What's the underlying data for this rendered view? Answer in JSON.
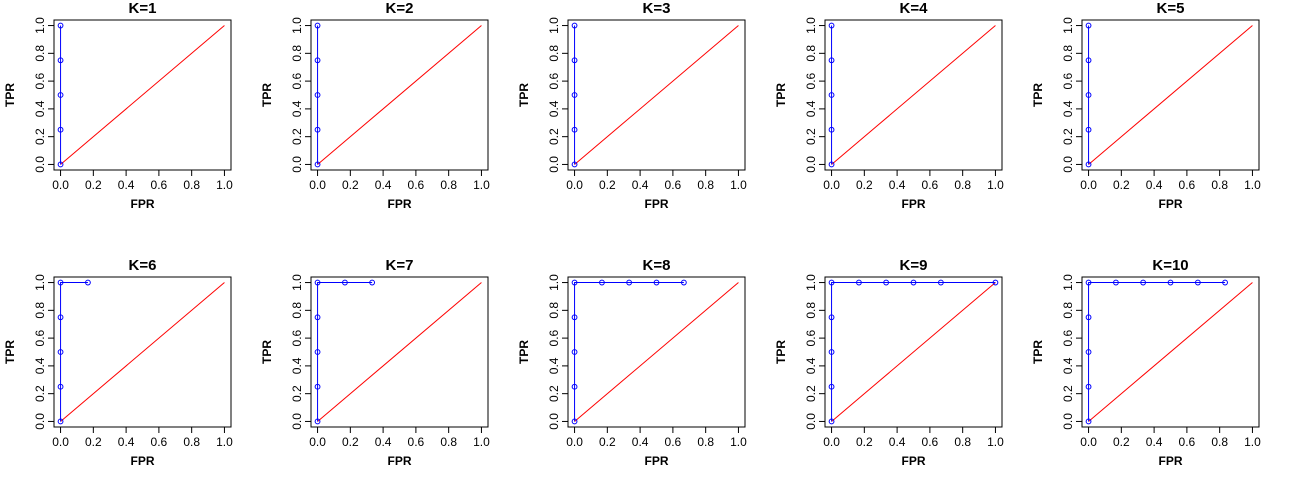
{
  "colors": {
    "roc": "#0000ff",
    "diagonal": "#ff0000",
    "axis": "#000000"
  },
  "chart_data": [
    {
      "type": "line",
      "title": "K=1",
      "xlabel": "FPR",
      "ylabel": "TPR",
      "xlim": [
        0,
        1
      ],
      "ylim": [
        0,
        1
      ],
      "xticks": [
        "0.0",
        "0.2",
        "0.4",
        "0.6",
        "0.8",
        "1.0"
      ],
      "yticks": [
        "0.0",
        "0.2",
        "0.4",
        "0.6",
        "0.8",
        "1.0"
      ],
      "reference_line": [
        [
          0,
          0
        ],
        [
          1,
          1
        ]
      ],
      "x": [
        0,
        0,
        0,
        0,
        0
      ],
      "y": [
        0,
        0.25,
        0.5,
        0.75,
        1.0
      ]
    },
    {
      "type": "line",
      "title": "K=2",
      "xlabel": "FPR",
      "ylabel": "TPR",
      "xlim": [
        0,
        1
      ],
      "ylim": [
        0,
        1
      ],
      "xticks": [
        "0.0",
        "0.2",
        "0.4",
        "0.6",
        "0.8",
        "1.0"
      ],
      "yticks": [
        "0.0",
        "0.2",
        "0.4",
        "0.6",
        "0.8",
        "1.0"
      ],
      "reference_line": [
        [
          0,
          0
        ],
        [
          1,
          1
        ]
      ],
      "x": [
        0,
        0,
        0,
        0,
        0
      ],
      "y": [
        0,
        0.25,
        0.5,
        0.75,
        1.0
      ]
    },
    {
      "type": "line",
      "title": "K=3",
      "xlabel": "FPR",
      "ylabel": "TPR",
      "xlim": [
        0,
        1
      ],
      "ylim": [
        0,
        1
      ],
      "xticks": [
        "0.0",
        "0.2",
        "0.4",
        "0.6",
        "0.8",
        "1.0"
      ],
      "yticks": [
        "0.0",
        "0.2",
        "0.4",
        "0.6",
        "0.8",
        "1.0"
      ],
      "reference_line": [
        [
          0,
          0
        ],
        [
          1,
          1
        ]
      ],
      "x": [
        0,
        0,
        0,
        0,
        0
      ],
      "y": [
        0,
        0.25,
        0.5,
        0.75,
        1.0
      ]
    },
    {
      "type": "line",
      "title": "K=4",
      "xlabel": "FPR",
      "ylabel": "TPR",
      "xlim": [
        0,
        1
      ],
      "ylim": [
        0,
        1
      ],
      "xticks": [
        "0.0",
        "0.2",
        "0.4",
        "0.6",
        "0.8",
        "1.0"
      ],
      "yticks": [
        "0.0",
        "0.2",
        "0.4",
        "0.6",
        "0.8",
        "1.0"
      ],
      "reference_line": [
        [
          0,
          0
        ],
        [
          1,
          1
        ]
      ],
      "x": [
        0,
        0,
        0,
        0,
        0
      ],
      "y": [
        0,
        0.25,
        0.5,
        0.75,
        1.0
      ]
    },
    {
      "type": "line",
      "title": "K=5",
      "xlabel": "FPR",
      "ylabel": "TPR",
      "xlim": [
        0,
        1
      ],
      "ylim": [
        0,
        1
      ],
      "xticks": [
        "0.0",
        "0.2",
        "0.4",
        "0.6",
        "0.8",
        "1.0"
      ],
      "yticks": [
        "0.0",
        "0.2",
        "0.4",
        "0.6",
        "0.8",
        "1.0"
      ],
      "reference_line": [
        [
          0,
          0
        ],
        [
          1,
          1
        ]
      ],
      "x": [
        0,
        0,
        0,
        0,
        0
      ],
      "y": [
        0,
        0.25,
        0.5,
        0.75,
        1.0
      ]
    },
    {
      "type": "line",
      "title": "K=6",
      "xlabel": "FPR",
      "ylabel": "TPR",
      "xlim": [
        0,
        1
      ],
      "ylim": [
        0,
        1
      ],
      "xticks": [
        "0.0",
        "0.2",
        "0.4",
        "0.6",
        "0.8",
        "1.0"
      ],
      "yticks": [
        "0.0",
        "0.2",
        "0.4",
        "0.6",
        "0.8",
        "1.0"
      ],
      "reference_line": [
        [
          0,
          0
        ],
        [
          1,
          1
        ]
      ],
      "x": [
        0,
        0,
        0,
        0,
        0,
        0.167
      ],
      "y": [
        0,
        0.25,
        0.5,
        0.75,
        1.0,
        1.0
      ]
    },
    {
      "type": "line",
      "title": "K=7",
      "xlabel": "FPR",
      "ylabel": "TPR",
      "xlim": [
        0,
        1
      ],
      "ylim": [
        0,
        1
      ],
      "xticks": [
        "0.0",
        "0.2",
        "0.4",
        "0.6",
        "0.8",
        "1.0"
      ],
      "yticks": [
        "0.0",
        "0.2",
        "0.4",
        "0.6",
        "0.8",
        "1.0"
      ],
      "reference_line": [
        [
          0,
          0
        ],
        [
          1,
          1
        ]
      ],
      "x": [
        0,
        0,
        0,
        0,
        0,
        0.167,
        0.333
      ],
      "y": [
        0,
        0.25,
        0.5,
        0.75,
        1.0,
        1.0,
        1.0
      ]
    },
    {
      "type": "line",
      "title": "K=8",
      "xlabel": "FPR",
      "ylabel": "TPR",
      "xlim": [
        0,
        1
      ],
      "ylim": [
        0,
        1
      ],
      "xticks": [
        "0.0",
        "0.2",
        "0.4",
        "0.6",
        "0.8",
        "1.0"
      ],
      "yticks": [
        "0.0",
        "0.2",
        "0.4",
        "0.6",
        "0.8",
        "1.0"
      ],
      "reference_line": [
        [
          0,
          0
        ],
        [
          1,
          1
        ]
      ],
      "x": [
        0,
        0,
        0,
        0,
        0,
        0.167,
        0.333,
        0.5,
        0.667
      ],
      "y": [
        0,
        0.25,
        0.5,
        0.75,
        1.0,
        1.0,
        1.0,
        1.0,
        1.0
      ]
    },
    {
      "type": "line",
      "title": "K=9",
      "xlabel": "FPR",
      "ylabel": "TPR",
      "xlim": [
        0,
        1
      ],
      "ylim": [
        0,
        1
      ],
      "xticks": [
        "0.0",
        "0.2",
        "0.4",
        "0.6",
        "0.8",
        "1.0"
      ],
      "yticks": [
        "0.0",
        "0.2",
        "0.4",
        "0.6",
        "0.8",
        "1.0"
      ],
      "reference_line": [
        [
          0,
          0
        ],
        [
          1,
          1
        ]
      ],
      "x": [
        0,
        0,
        0,
        0,
        0,
        0.167,
        0.333,
        0.5,
        0.667,
        1.0
      ],
      "y": [
        0,
        0.25,
        0.5,
        0.75,
        1.0,
        1.0,
        1.0,
        1.0,
        1.0,
        1.0
      ]
    },
    {
      "type": "line",
      "title": "K=10",
      "xlabel": "FPR",
      "ylabel": "TPR",
      "xlim": [
        0,
        1
      ],
      "ylim": [
        0,
        1
      ],
      "xticks": [
        "0.0",
        "0.2",
        "0.4",
        "0.6",
        "0.8",
        "1.0"
      ],
      "yticks": [
        "0.0",
        "0.2",
        "0.4",
        "0.6",
        "0.8",
        "1.0"
      ],
      "reference_line": [
        [
          0,
          0
        ],
        [
          1,
          1
        ]
      ],
      "x": [
        0,
        0,
        0,
        0,
        0,
        0.167,
        0.333,
        0.5,
        0.667,
        0.833
      ],
      "y": [
        0,
        0.25,
        0.5,
        0.75,
        1.0,
        1.0,
        1.0,
        1.0,
        1.0,
        1.0
      ]
    }
  ]
}
